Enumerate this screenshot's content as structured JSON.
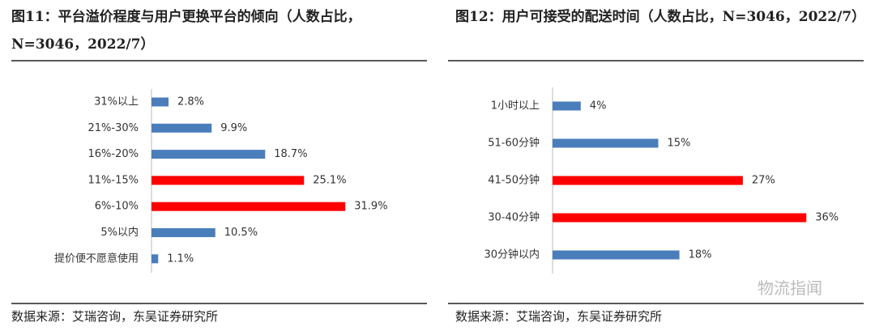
{
  "chart_data": [
    {
      "type": "bar",
      "orientation": "horizontal",
      "title": "图11：平台溢价程度与用户更换平台的倾向（人数占比，N=3046，2022/7）",
      "categories": [
        "31%以上",
        "21%-30%",
        "16%-20%",
        "11%-15%",
        "6%-10%",
        "5%以内",
        "提价便不愿意使用"
      ],
      "values": [
        2.8,
        9.9,
        18.7,
        25.1,
        31.9,
        10.5,
        1.1
      ],
      "value_labels": [
        "2.8%",
        "9.9%",
        "18.7%",
        "25.1%",
        "31.9%",
        "10.5%",
        "1.1%"
      ],
      "colors": [
        "#4a7ebb",
        "#4a7ebb",
        "#4a7ebb",
        "#ff0000",
        "#ff0000",
        "#4a7ebb",
        "#4a7ebb"
      ],
      "source": "数据来源：艾瑞咨询，东吴证券研究所"
    },
    {
      "type": "bar",
      "orientation": "horizontal",
      "title": "图12：用户可接受的配送时间（人数占比，N=3046，2022/7）",
      "categories": [
        "1小时以上",
        "51-60分钟",
        "41-50分钟",
        "30-40分钟",
        "30分钟以内"
      ],
      "values": [
        4,
        15,
        27,
        36,
        18
      ],
      "value_labels": [
        "4%",
        "15%",
        "27%",
        "36%",
        "18%"
      ],
      "colors": [
        "#4a7ebb",
        "#4a7ebb",
        "#ff0000",
        "#ff0000",
        "#4a7ebb"
      ],
      "source": "数据来源：艾瑞咨询，东吴证券研究所"
    }
  ],
  "watermark": "物流指闻"
}
